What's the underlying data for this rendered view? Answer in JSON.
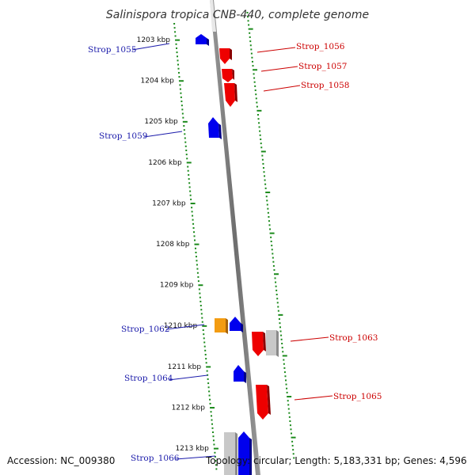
{
  "title": "Salinispora tropica CNB-440, complete genome",
  "footer": {
    "accession": "Accession: NC_009380",
    "summary": "Topology: circular; Length: 5,183,331 bp; Genes: 4,596"
  },
  "colors": {
    "plus_strand_gene": "#ee0000",
    "minus_strand_gene": "#0000ee",
    "other_gene": "#c8c8c8",
    "rna_gene": "#f39c12",
    "tick": "#1b8a1b",
    "backbone": "#888888",
    "left_label": "#1a1aaa",
    "right_label": "#cc0000"
  },
  "kbp_labels": [
    "1203 kbp",
    "1204 kbp",
    "1205 kbp",
    "1206 kbp",
    "1207 kbp",
    "1208 kbp",
    "1209 kbp",
    "1210 kbp",
    "1211 kbp",
    "1212 kbp",
    "1213 kbp"
  ],
  "genes": [
    {
      "label": "Strop_1055",
      "side": "left"
    },
    {
      "label": "Strop_1056",
      "side": "right"
    },
    {
      "label": "Strop_1057",
      "side": "right"
    },
    {
      "label": "Strop_1058",
      "side": "right"
    },
    {
      "label": "Strop_1059",
      "side": "left"
    },
    {
      "label": "Strop_1062",
      "side": "left"
    },
    {
      "label": "Strop_1063",
      "side": "right"
    },
    {
      "label": "Strop_1064",
      "side": "left"
    },
    {
      "label": "Strop_1065",
      "side": "right"
    },
    {
      "label": "Strop_1066",
      "side": "left"
    }
  ]
}
